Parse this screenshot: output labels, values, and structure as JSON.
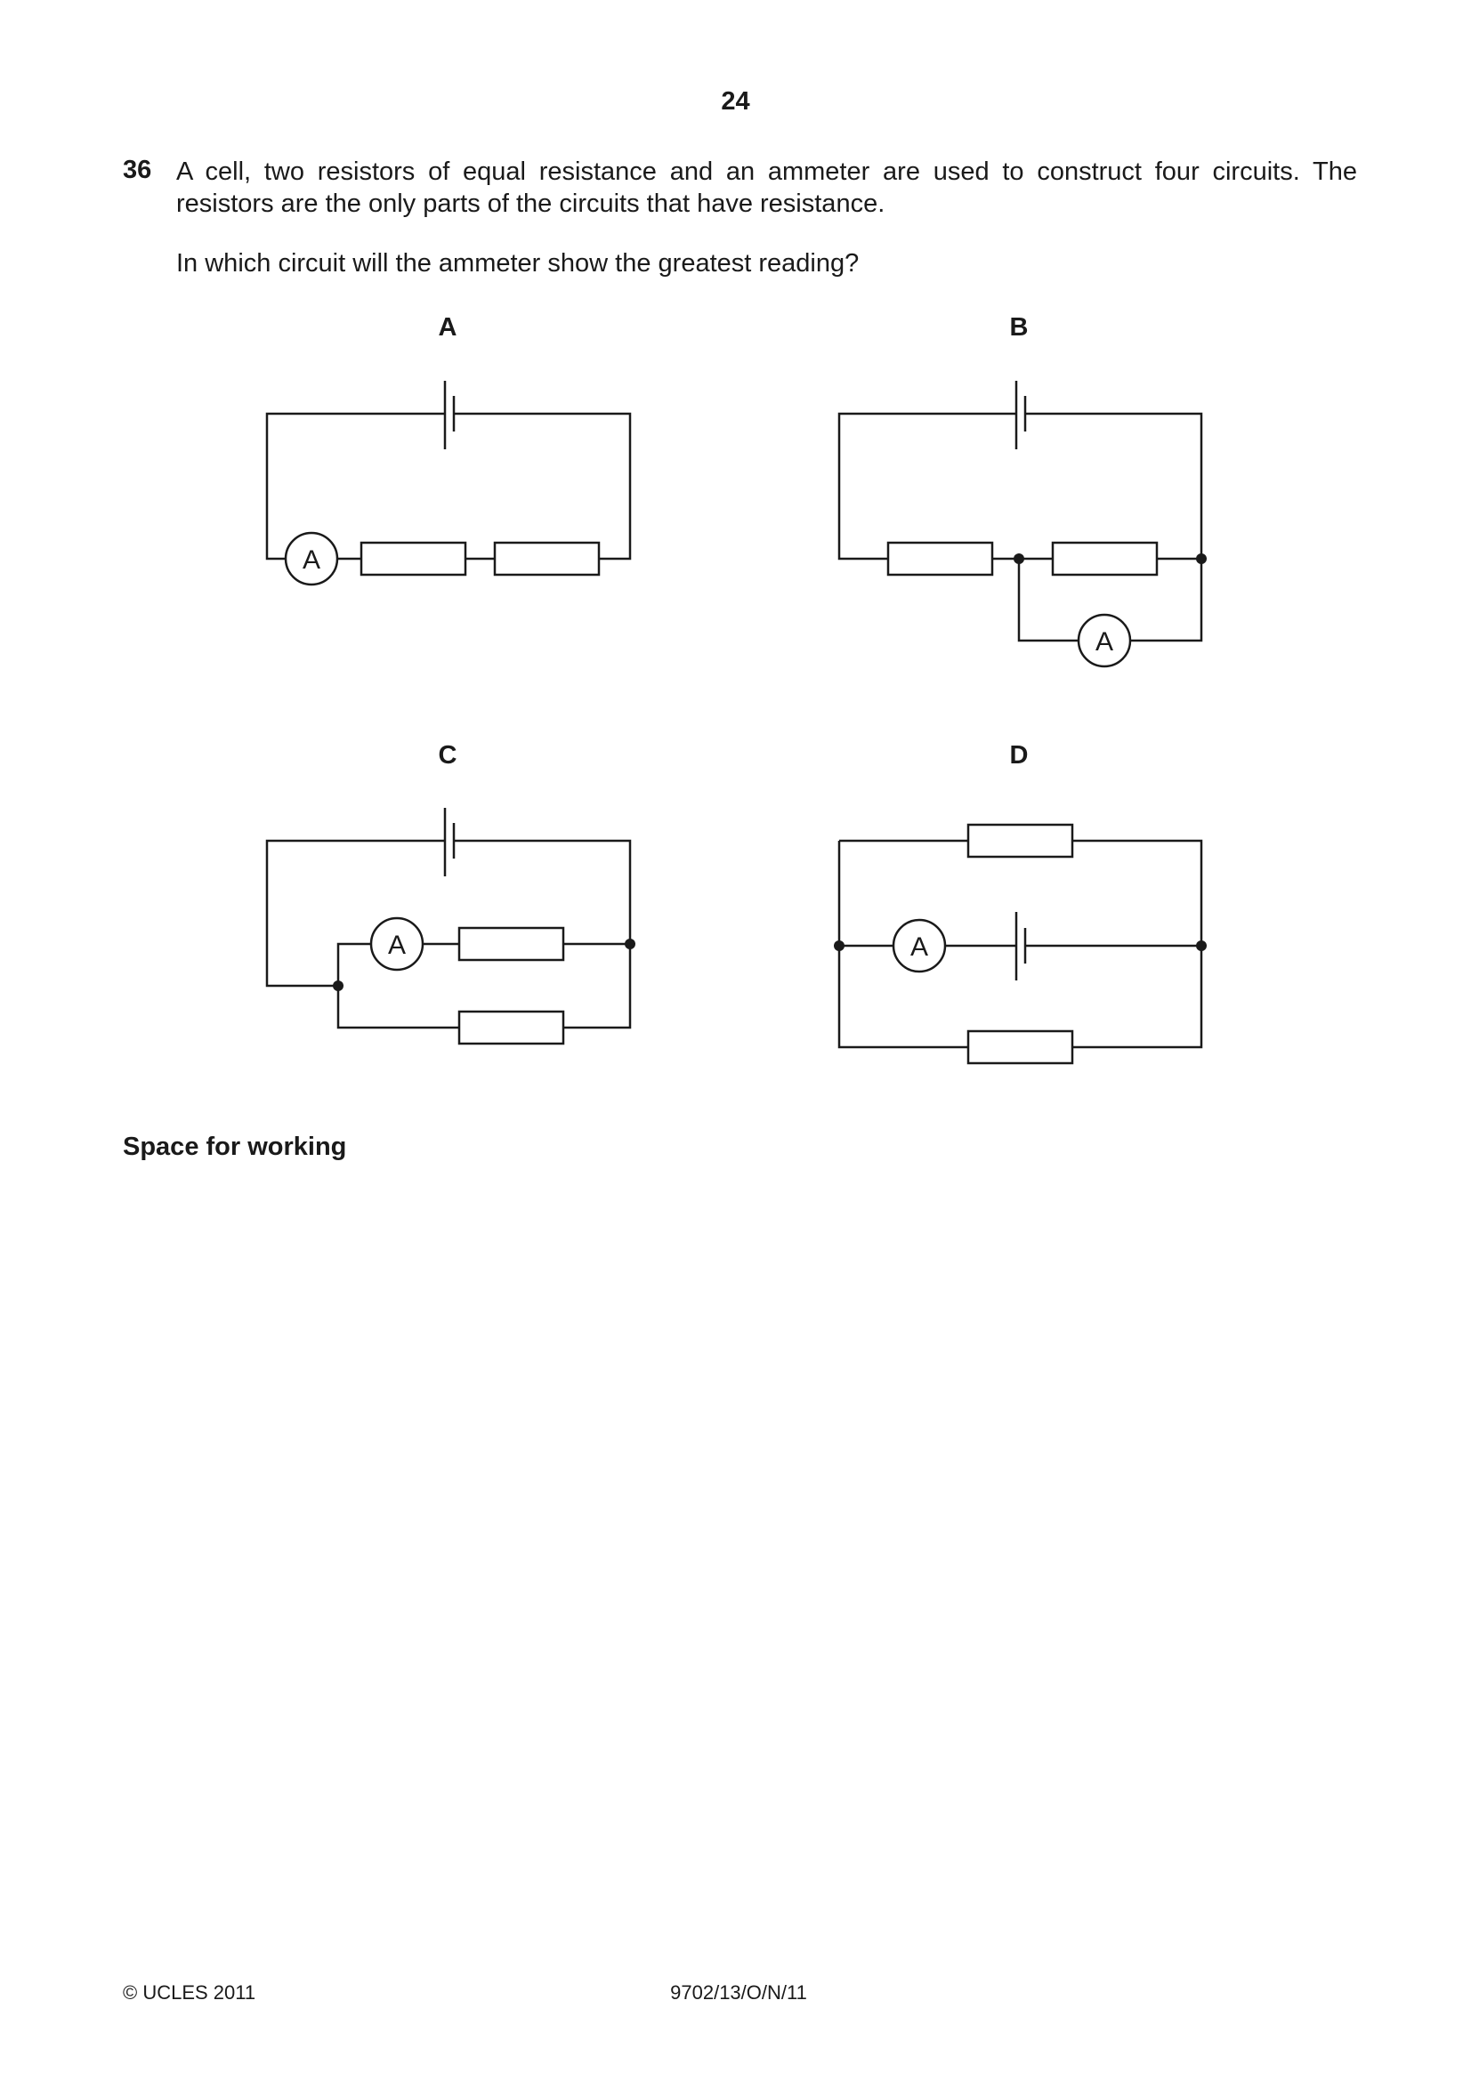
{
  "page": {
    "number": "24"
  },
  "question": {
    "number": "36",
    "stem": "A cell, two resistors of equal resistance and an ammeter are used to construct four circuits. The resistors are the only parts of the circuits that have resistance.",
    "prompt": "In which circuit will the ammeter show the greatest reading?"
  },
  "options": [
    {
      "label": "A",
      "meter_label": "A"
    },
    {
      "label": "B",
      "meter_label": "A"
    },
    {
      "label": "C",
      "meter_label": "A"
    },
    {
      "label": "D",
      "meter_label": "A"
    }
  ],
  "working": {
    "label": "Space for working"
  },
  "footer": {
    "copyright": "© UCLES 2011",
    "code": "9702/13/O/N/11"
  }
}
